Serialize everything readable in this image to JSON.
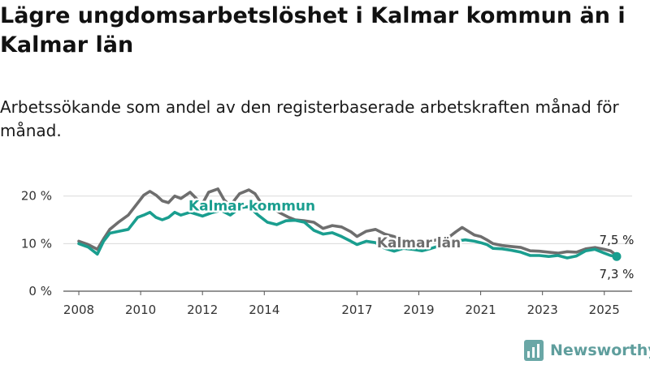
{
  "title": "Lägre ungdomsarbetslöshet i Kalmar kommun än i Kalmar län",
  "subtitle": "Arbetssökande som andel av den registerbaserade arbetskraften månad för månad.",
  "brand": "Newsworthy",
  "colors": {
    "kommun": "#1a9e8f",
    "lan": "#6e6e6e",
    "grid": "#d9d9d9",
    "axis": "#555555"
  },
  "chart_data": {
    "type": "line",
    "title": "Lägre ungdomsarbetslöshet i Kalmar kommun än i Kalmar län",
    "subtitle": "Arbetssökande som andel av den registerbaserade arbetskraften månad för månad.",
    "xlabel": "",
    "ylabel": "",
    "x_ticks": [
      "2008",
      "2010",
      "2012",
      "2014",
      "2017",
      "2019",
      "2021",
      "2023",
      "2025"
    ],
    "y_ticks": [
      "0 %",
      "10 %",
      "20 %"
    ],
    "ylim": [
      0,
      22
    ],
    "xlim": [
      2007.5,
      2025.9
    ],
    "grid": true,
    "series": [
      {
        "name": "Kalmar län",
        "color": "#6e6e6e",
        "points": [
          [
            2008.0,
            10.5
          ],
          [
            2008.3,
            9.8
          ],
          [
            2008.6,
            8.8
          ],
          [
            2008.8,
            11.0
          ],
          [
            2009.0,
            13.0
          ],
          [
            2009.3,
            14.6
          ],
          [
            2009.6,
            16.0
          ],
          [
            2009.9,
            18.5
          ],
          [
            2010.1,
            20.2
          ],
          [
            2010.3,
            21.0
          ],
          [
            2010.5,
            20.2
          ],
          [
            2010.7,
            19.0
          ],
          [
            2010.9,
            18.6
          ],
          [
            2011.1,
            20.0
          ],
          [
            2011.3,
            19.5
          ],
          [
            2011.6,
            20.8
          ],
          [
            2011.8,
            19.5
          ],
          [
            2012.0,
            18.4
          ],
          [
            2012.2,
            20.8
          ],
          [
            2012.5,
            21.5
          ],
          [
            2012.7,
            19.2
          ],
          [
            2012.9,
            18.0
          ],
          [
            2013.2,
            20.5
          ],
          [
            2013.5,
            21.3
          ],
          [
            2013.7,
            20.5
          ],
          [
            2013.9,
            18.5
          ],
          [
            2014.2,
            17.8
          ],
          [
            2014.5,
            16.5
          ],
          [
            2014.8,
            15.5
          ],
          [
            2015.0,
            15.0
          ],
          [
            2015.3,
            14.8
          ],
          [
            2015.6,
            14.5
          ],
          [
            2015.9,
            13.2
          ],
          [
            2016.2,
            13.8
          ],
          [
            2016.5,
            13.5
          ],
          [
            2016.8,
            12.5
          ],
          [
            2017.0,
            11.5
          ],
          [
            2017.3,
            12.6
          ],
          [
            2017.6,
            13.0
          ],
          [
            2017.9,
            12.0
          ],
          [
            2018.2,
            11.5
          ],
          [
            2018.5,
            10.5
          ],
          [
            2018.8,
            10.0
          ],
          [
            2019.1,
            10.0
          ],
          [
            2019.4,
            10.5
          ],
          [
            2019.7,
            11.0
          ],
          [
            2020.0,
            11.5
          ],
          [
            2020.2,
            12.5
          ],
          [
            2020.4,
            13.4
          ],
          [
            2020.6,
            12.6
          ],
          [
            2020.8,
            11.8
          ],
          [
            2021.0,
            11.5
          ],
          [
            2021.2,
            10.8
          ],
          [
            2021.4,
            10.0
          ],
          [
            2021.7,
            9.6
          ],
          [
            2022.0,
            9.4
          ],
          [
            2022.3,
            9.2
          ],
          [
            2022.6,
            8.5
          ],
          [
            2022.9,
            8.4
          ],
          [
            2023.2,
            8.2
          ],
          [
            2023.5,
            8.0
          ],
          [
            2023.8,
            8.3
          ],
          [
            2024.1,
            8.2
          ],
          [
            2024.4,
            8.9
          ],
          [
            2024.7,
            9.2
          ],
          [
            2025.0,
            8.8
          ],
          [
            2025.2,
            8.5
          ],
          [
            2025.4,
            7.5
          ]
        ]
      },
      {
        "name": "Kalmar kommun",
        "color": "#1a9e8f",
        "points": [
          [
            2008.0,
            10.0
          ],
          [
            2008.3,
            9.3
          ],
          [
            2008.6,
            7.8
          ],
          [
            2008.8,
            10.5
          ],
          [
            2009.0,
            12.2
          ],
          [
            2009.3,
            12.6
          ],
          [
            2009.6,
            13.0
          ],
          [
            2009.9,
            15.5
          ],
          [
            2010.1,
            16.0
          ],
          [
            2010.3,
            16.6
          ],
          [
            2010.5,
            15.5
          ],
          [
            2010.7,
            15.0
          ],
          [
            2010.9,
            15.5
          ],
          [
            2011.1,
            16.6
          ],
          [
            2011.3,
            16.0
          ],
          [
            2011.6,
            16.6
          ],
          [
            2011.8,
            16.2
          ],
          [
            2012.0,
            15.8
          ],
          [
            2012.3,
            16.5
          ],
          [
            2012.6,
            17.0
          ],
          [
            2012.9,
            16.0
          ],
          [
            2013.2,
            17.5
          ],
          [
            2013.5,
            17.8
          ],
          [
            2013.8,
            16.0
          ],
          [
            2014.1,
            14.5
          ],
          [
            2014.4,
            14.0
          ],
          [
            2014.7,
            14.8
          ],
          [
            2015.0,
            14.9
          ],
          [
            2015.3,
            14.5
          ],
          [
            2015.6,
            12.8
          ],
          [
            2015.9,
            12.0
          ],
          [
            2016.2,
            12.3
          ],
          [
            2016.5,
            11.5
          ],
          [
            2016.8,
            10.5
          ],
          [
            2017.0,
            9.8
          ],
          [
            2017.3,
            10.5
          ],
          [
            2017.6,
            10.2
          ],
          [
            2017.9,
            9.0
          ],
          [
            2018.2,
            8.4
          ],
          [
            2018.5,
            9.0
          ],
          [
            2018.8,
            8.8
          ],
          [
            2019.1,
            8.5
          ],
          [
            2019.4,
            9.0
          ],
          [
            2019.7,
            9.6
          ],
          [
            2020.0,
            10.0
          ],
          [
            2020.2,
            10.5
          ],
          [
            2020.5,
            10.8
          ],
          [
            2020.8,
            10.5
          ],
          [
            2021.0,
            10.2
          ],
          [
            2021.2,
            9.8
          ],
          [
            2021.4,
            9.0
          ],
          [
            2021.7,
            8.9
          ],
          [
            2022.0,
            8.6
          ],
          [
            2022.3,
            8.2
          ],
          [
            2022.6,
            7.5
          ],
          [
            2022.9,
            7.5
          ],
          [
            2023.2,
            7.3
          ],
          [
            2023.5,
            7.5
          ],
          [
            2023.8,
            7.0
          ],
          [
            2024.1,
            7.4
          ],
          [
            2024.4,
            8.5
          ],
          [
            2024.7,
            8.8
          ],
          [
            2025.0,
            8.0
          ],
          [
            2025.2,
            7.5
          ],
          [
            2025.4,
            7.3
          ]
        ]
      }
    ],
    "series_labels": [
      {
        "series": "Kalmar kommun",
        "text": "Kalmar kommun",
        "at": [
          2013.6,
          17.0
        ]
      },
      {
        "series": "Kalmar län",
        "text": "Kalmar län",
        "at": [
          2019.0,
          9.2
        ]
      }
    ],
    "end_labels": [
      {
        "series": "Kalmar län",
        "text": "7,5 %"
      },
      {
        "series": "Kalmar kommun",
        "text": "7,3 %"
      }
    ]
  }
}
